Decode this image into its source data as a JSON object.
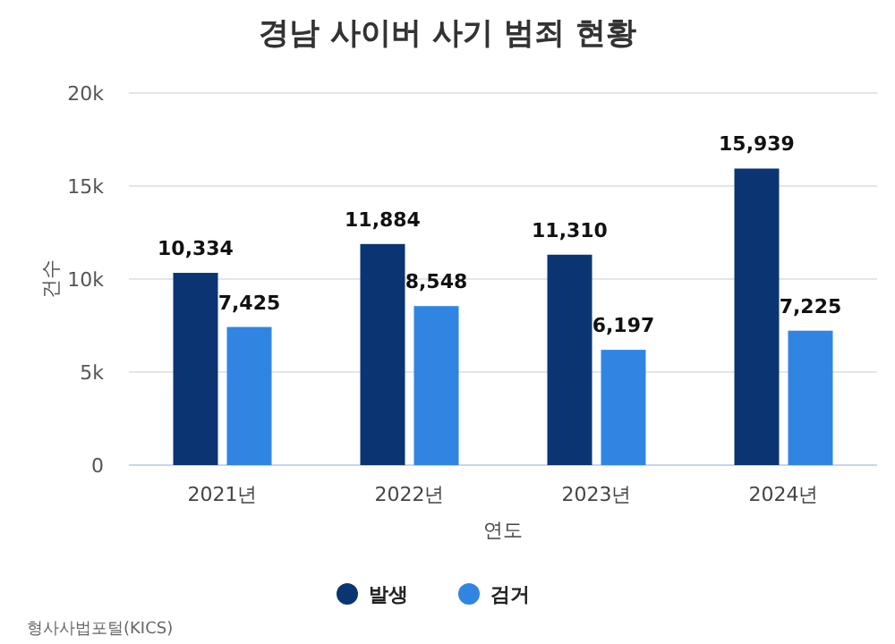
{
  "chart_data": {
    "type": "bar",
    "title": "경남 사이버 사기 범죄 현황",
    "xlabel": "연도",
    "ylabel": "건수",
    "categories": [
      "2021년",
      "2022년",
      "2023년",
      "2024년"
    ],
    "series": [
      {
        "name": "발생",
        "color": "#0a3572",
        "values": [
          10334,
          11884,
          11310,
          15939
        ],
        "value_labels": [
          "10,334",
          "11,884",
          "11,310",
          "15,939"
        ]
      },
      {
        "name": "검거",
        "color": "#3185e2",
        "values": [
          7425,
          8548,
          6197,
          7225
        ],
        "value_labels": [
          "7,425",
          "8,548",
          "6,197",
          "7,225"
        ]
      }
    ],
    "ylim": [
      0,
      20000
    ],
    "yticks": [
      0,
      {
        "value": 5000,
        "label": "5k"
      },
      {
        "value": 10000,
        "label": "10k"
      },
      {
        "value": 15000,
        "label": "15k"
      },
      {
        "value": 20000,
        "label": "20k"
      }
    ],
    "grid": "y",
    "legend": "bottom",
    "annotations": [
      "형사사법포털(KICS)"
    ]
  }
}
